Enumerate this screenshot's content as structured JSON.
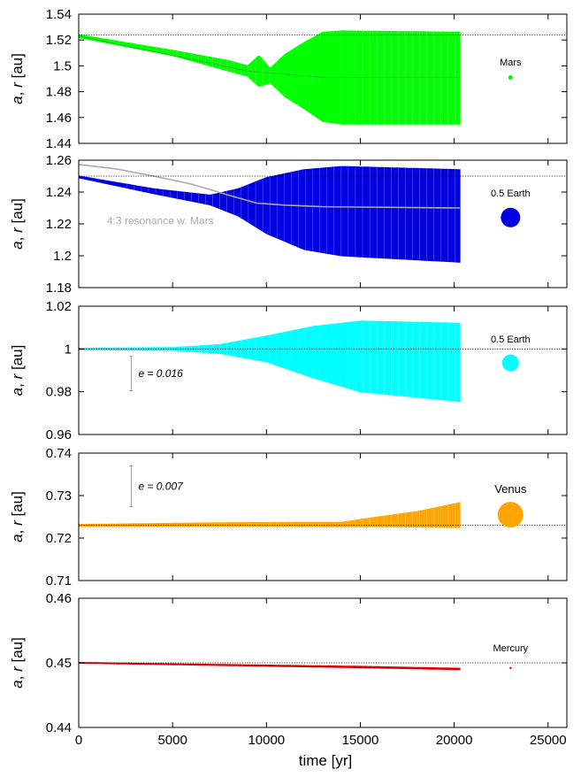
{
  "figure": {
    "xlabel": "time [yr]",
    "ylabel_var1": "a",
    "ylabel_sep": ", ",
    "ylabel_var2": "r",
    "ylabel_unit": " [au]",
    "xlim": [
      0,
      26000
    ],
    "xticks": [
      "0",
      "5000",
      "10000",
      "15000",
      "20000",
      "25000"
    ]
  },
  "chart_data": [
    {
      "type": "line",
      "color": "#00ff00",
      "ylim": [
        1.44,
        1.54
      ],
      "yticks": [
        "1.44",
        "1.46",
        "1.48",
        "1.5",
        "1.52",
        "1.54"
      ],
      "reference_line": 1.524,
      "legend": {
        "label": "Mars",
        "marker_x": 23000,
        "marker_y": 1.491
      },
      "envelope": [
        {
          "t": 0,
          "upper": 1.524,
          "lower": 1.522
        },
        {
          "t": 5000,
          "upper": 1.512,
          "lower": 1.508
        },
        {
          "t": 8000,
          "upper": 1.504,
          "lower": 1.496
        },
        {
          "t": 9000,
          "upper": 1.5,
          "lower": 1.492
        },
        {
          "t": 9600,
          "upper": 1.508,
          "lower": 1.484
        },
        {
          "t": 10200,
          "upper": 1.498,
          "lower": 1.487
        },
        {
          "t": 11000,
          "upper": 1.509,
          "lower": 1.476
        },
        {
          "t": 12000,
          "upper": 1.518,
          "lower": 1.467
        },
        {
          "t": 13000,
          "upper": 1.526,
          "lower": 1.457
        },
        {
          "t": 14000,
          "upper": 1.527,
          "lower": 1.455
        },
        {
          "t": 20300,
          "upper": 1.526,
          "lower": 1.455
        }
      ],
      "mean_line": [
        {
          "t": 0,
          "a": 1.523
        },
        {
          "t": 9000,
          "a": 1.496
        },
        {
          "t": 13000,
          "a": 1.491
        },
        {
          "t": 20300,
          "a": 1.491
        }
      ]
    },
    {
      "type": "line",
      "color": "#0000e0",
      "ylim": [
        1.18,
        1.26
      ],
      "yticks": [
        "1.18",
        "1.2",
        "1.22",
        "1.24",
        "1.26"
      ],
      "reference_line": 1.25,
      "legend": {
        "label": "0.5 Earth",
        "marker_x": 23000,
        "marker_y": 1.224
      },
      "annotation": {
        "text": "4:3 resonance w. Mars",
        "t": 1500,
        "a": 1.222
      },
      "envelope": [
        {
          "t": 0,
          "upper": 1.25,
          "lower": 1.249
        },
        {
          "t": 4000,
          "upper": 1.242,
          "lower": 1.239
        },
        {
          "t": 7000,
          "upper": 1.238,
          "lower": 1.232
        },
        {
          "t": 8500,
          "upper": 1.242,
          "lower": 1.225
        },
        {
          "t": 10000,
          "upper": 1.249,
          "lower": 1.214
        },
        {
          "t": 12000,
          "upper": 1.254,
          "lower": 1.204
        },
        {
          "t": 14000,
          "upper": 1.256,
          "lower": 1.2
        },
        {
          "t": 20300,
          "upper": 1.254,
          "lower": 1.196
        }
      ],
      "resonance_line": [
        {
          "t": 0,
          "a": 1.2573
        },
        {
          "t": 2000,
          "a": 1.2545
        },
        {
          "t": 4000,
          "a": 1.25
        },
        {
          "t": 6000,
          "a": 1.245
        },
        {
          "t": 8000,
          "a": 1.238
        },
        {
          "t": 9500,
          "a": 1.233
        },
        {
          "t": 11000,
          "a": 1.2318
        },
        {
          "t": 13000,
          "a": 1.2308
        },
        {
          "t": 20300,
          "a": 1.23
        }
      ]
    },
    {
      "type": "line",
      "color": "#00ffff",
      "ylim": [
        0.96,
        1.02
      ],
      "yticks": [
        "0.96",
        "0.98",
        "1",
        "1.02"
      ],
      "reference_line": 1.0,
      "legend": {
        "label": "0.5 Earth",
        "marker_x": 23000,
        "marker_y": 0.9935
      },
      "eccentricity_bar": {
        "text": "e = 0.016",
        "t": 2800,
        "center": 0.9885,
        "half": 0.008
      },
      "envelope": [
        {
          "t": 0,
          "upper": 1.0003,
          "lower": 0.9997
        },
        {
          "t": 5000,
          "upper": 1.0006,
          "lower": 0.9994
        },
        {
          "t": 7500,
          "upper": 1.002,
          "lower": 0.998
        },
        {
          "t": 10000,
          "upper": 1.006,
          "lower": 0.994
        },
        {
          "t": 12500,
          "upper": 1.0105,
          "lower": 0.9865
        },
        {
          "t": 15000,
          "upper": 1.013,
          "lower": 0.98
        },
        {
          "t": 20300,
          "upper": 1.012,
          "lower": 0.9755
        }
      ]
    },
    {
      "type": "line",
      "color": "#ffa500",
      "ylim": [
        0.71,
        0.74
      ],
      "yticks": [
        "0.71",
        "0.72",
        "0.73",
        "0.74"
      ],
      "reference_line": 0.723,
      "legend": {
        "label": "Venus",
        "marker_x": 23000,
        "marker_y": 0.7255
      },
      "eccentricity_bar": {
        "text": "e = 0.007",
        "t": 2800,
        "center": 0.7322,
        "half": 0.0048
      },
      "envelope": [
        {
          "t": 0,
          "upper": 0.7232,
          "lower": 0.7228
        },
        {
          "t": 8000,
          "upper": 0.7236,
          "lower": 0.7228
        },
        {
          "t": 14000,
          "upper": 0.7237,
          "lower": 0.7227
        },
        {
          "t": 16000,
          "upper": 0.725,
          "lower": 0.7227
        },
        {
          "t": 18000,
          "upper": 0.7262,
          "lower": 0.7226
        },
        {
          "t": 20300,
          "upper": 0.7283,
          "lower": 0.7225
        }
      ]
    },
    {
      "type": "line",
      "color": "#dd0000",
      "ylim": [
        0.44,
        0.46
      ],
      "yticks": [
        "0.44",
        "0.45",
        "0.46"
      ],
      "reference_line": 0.45,
      "legend": {
        "label": "Mercury",
        "marker_x": 23000,
        "marker_y": 0.4492
      },
      "envelope": [
        {
          "t": 0,
          "upper": 0.45005,
          "lower": 0.44995
        },
        {
          "t": 15000,
          "upper": 0.44945,
          "lower": 0.44925
        },
        {
          "t": 20300,
          "upper": 0.44915,
          "lower": 0.44895
        }
      ]
    }
  ]
}
